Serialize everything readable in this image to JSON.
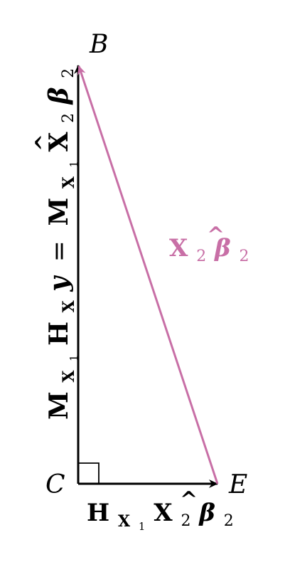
{
  "points": {
    "B": "B",
    "C": "C",
    "E": "E"
  },
  "labels": {
    "vertical": {
      "M": "M",
      "H": "H",
      "X": "X",
      "sub1": "1",
      "y": "y",
      "equals": "=",
      "X2": "X",
      "sub2": "2",
      "beta": "β",
      "beta_sub": "2",
      "hat": "^"
    },
    "horizontal": {
      "H": "H",
      "X": "X",
      "sub1": "1",
      "X2": "X",
      "sub2": "2",
      "beta": "β",
      "beta_sub": "2",
      "hat": "^"
    },
    "hypotenuse": {
      "X": "X",
      "sub2": "2",
      "beta": "β",
      "beta_sub": "2",
      "hat": "^"
    }
  },
  "colors": {
    "line": "#000000",
    "accent": "#c86fa6"
  }
}
